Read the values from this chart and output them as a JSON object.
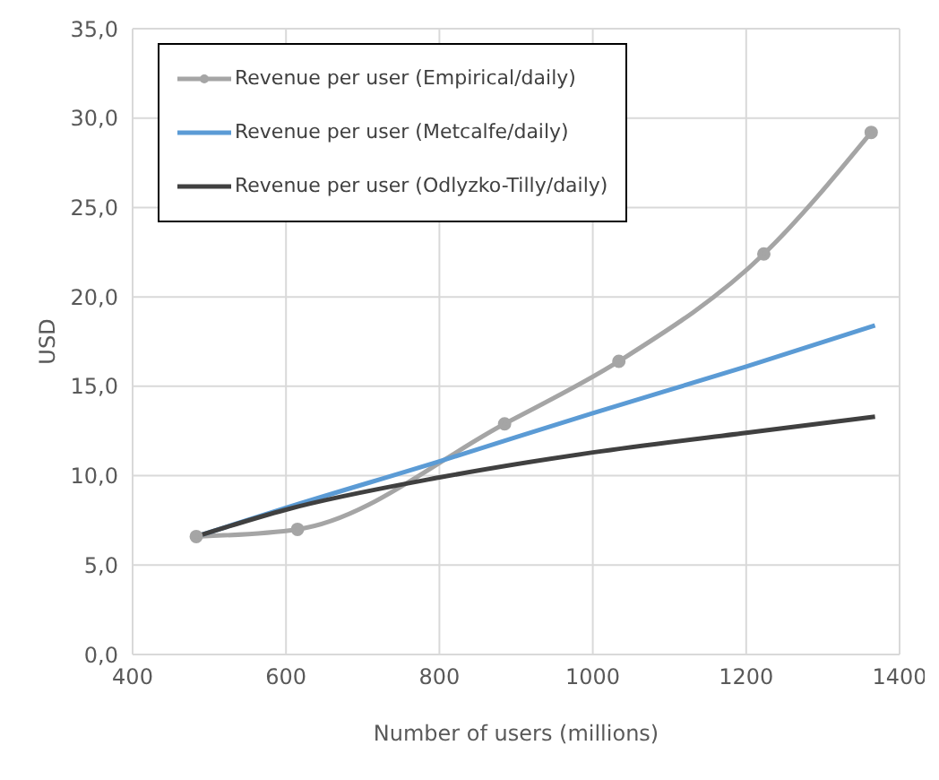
{
  "chart_data": {
    "type": "line",
    "xlabel": "Number of users (millions)",
    "ylabel": "USD",
    "xlim": [
      400,
      1400
    ],
    "xticks": [
      400,
      600,
      800,
      1000,
      1200,
      1400
    ],
    "ylim": [
      0,
      35
    ],
    "yticks": [
      {
        "value": 0,
        "label": "0,0"
      },
      {
        "value": 5,
        "label": "5,0"
      },
      {
        "value": 10,
        "label": "10,0"
      },
      {
        "value": 15,
        "label": "15,0"
      },
      {
        "value": 20,
        "label": "20,0"
      },
      {
        "value": 25,
        "label": "25,0"
      },
      {
        "value": 30,
        "label": "30,0"
      },
      {
        "value": 35,
        "label": "35,0"
      }
    ],
    "grid": true,
    "legend": "top left",
    "line_style": "solid",
    "series": [
      {
        "name": "Revenue per user (Empirical/daily)",
        "color": "#a5a5a5",
        "marker": "circle",
        "x": [
          483,
          615,
          885,
          1034,
          1223,
          1363
        ],
        "values": [
          6.6,
          7.0,
          12.9,
          16.4,
          22.4,
          29.2
        ]
      },
      {
        "name": "Revenue per user (Metcalfe/daily)",
        "color": "#5b9bd5",
        "marker": "none",
        "x": [
          483,
          600,
          800,
          1000,
          1200,
          1368
        ],
        "values": [
          6.6,
          8.2,
          10.8,
          13.5,
          16.1,
          18.4
        ]
      },
      {
        "name": "Revenue per user (Odlyzko-Tilly/daily)",
        "color": "#404040",
        "marker": "none",
        "x": [
          483,
          600,
          800,
          1000,
          1200,
          1368
        ],
        "values": [
          6.6,
          8.1,
          9.9,
          11.3,
          12.4,
          13.3
        ]
      }
    ]
  }
}
